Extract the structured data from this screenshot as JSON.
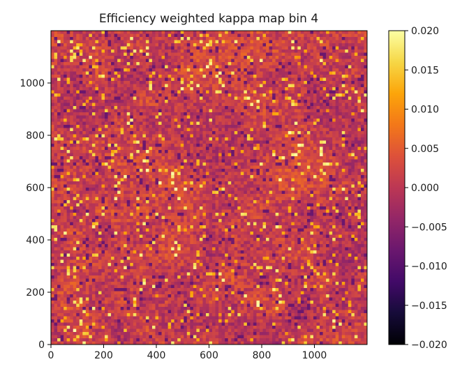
{
  "chart_data": {
    "type": "heatmap",
    "title": "Efficiency weighted kappa map bin 4",
    "xlabel": "",
    "ylabel": "",
    "xlim": [
      0,
      1200
    ],
    "ylim": [
      0,
      1200
    ],
    "x_ticks": [
      0,
      200,
      400,
      600,
      800,
      1000
    ],
    "y_ticks": [
      0,
      200,
      400,
      600,
      800,
      1000
    ],
    "x_tick_labels": [
      "0",
      "200",
      "400",
      "600",
      "800",
      "1000"
    ],
    "y_tick_labels": [
      "0",
      "200",
      "400",
      "600",
      "800",
      "1000"
    ],
    "colormap": "inferno",
    "colorbar": {
      "vmin": -0.02,
      "vmax": 0.02,
      "ticks": [
        -0.02,
        -0.015,
        -0.01,
        -0.005,
        0.0,
        0.005,
        0.01,
        0.015,
        0.02
      ],
      "tick_labels": [
        "−0.020",
        "−0.015",
        "−0.010",
        "−0.005",
        "0.000",
        "0.005",
        "0.010",
        "0.015",
        "0.020"
      ]
    },
    "field_description_values": {
      "typical_min": -0.008,
      "typical_max": 0.02,
      "typical_center": 0.001
    },
    "grid": false,
    "legend": "none"
  }
}
